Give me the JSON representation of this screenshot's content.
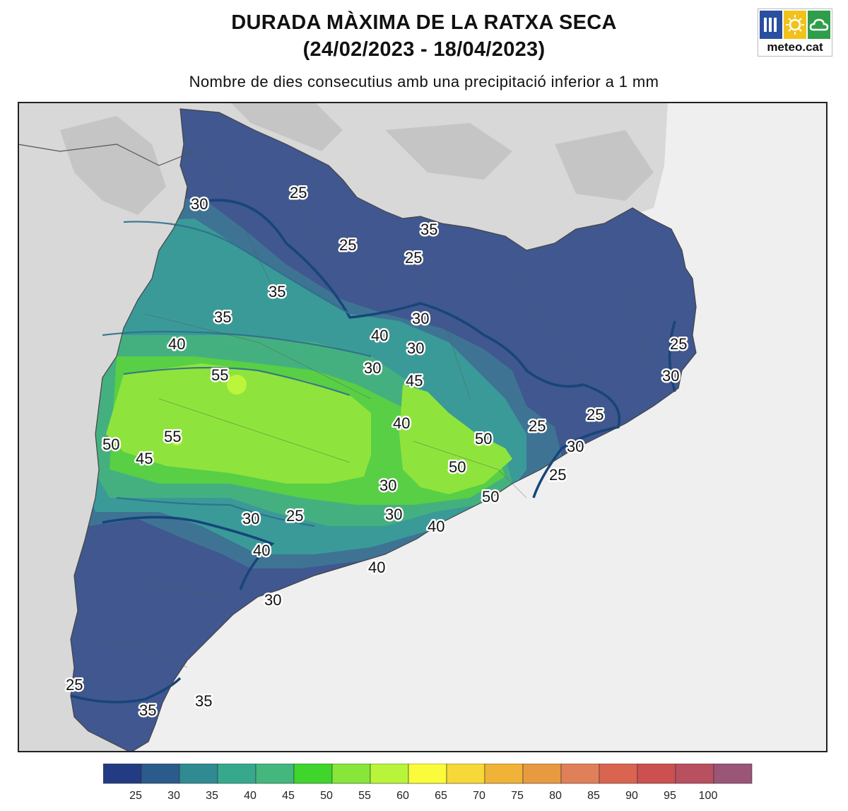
{
  "header": {
    "title_line1": "DURADA MÀXIMA DE LA RATXA SECA",
    "title_line2": "(24/02/2023 - 18/04/2023)",
    "subtitle": "Nombre de dies consecutius amb una precipitació inferior a 1 mm"
  },
  "logo": {
    "text": "meteo.cat",
    "colors": [
      "#2a4fa0",
      "#f2c21a",
      "#2e9e4a"
    ],
    "icons": [
      "lines-icon",
      "sun-icon",
      "cloud-icon"
    ]
  },
  "map": {
    "colors": {
      "background": "#efefef",
      "relief": "#d6d6d6",
      "sea": "#efefef",
      "contour_line": "#16457a",
      "border_line": "#555555"
    },
    "contour_labels": [
      "25",
      "30",
      "35",
      "25",
      "25",
      "35",
      "35",
      "40",
      "30",
      "40",
      "30",
      "30",
      "45",
      "55",
      "55",
      "50",
      "45",
      "40",
      "50",
      "50",
      "25",
      "25",
      "25",
      "30",
      "25",
      "30",
      "30",
      "50",
      "40",
      "40",
      "30",
      "30",
      "25",
      "35",
      "35",
      "25",
      "30",
      "40"
    ]
  },
  "legend": {
    "colors": [
      "#233b82",
      "#2a5b8c",
      "#2f8a92",
      "#36a98d",
      "#43b77e",
      "#3fd52c",
      "#86e63a",
      "#b8f53a",
      "#fafc3b",
      "#f6d838",
      "#f0b337",
      "#e89a40",
      "#e08058",
      "#d96450",
      "#cc5050",
      "#b85060",
      "#9a5577"
    ],
    "ticks": [
      "25",
      "30",
      "35",
      "40",
      "45",
      "50",
      "55",
      "60",
      "65",
      "70",
      "75",
      "80",
      "85",
      "90",
      "95",
      "100"
    ]
  }
}
